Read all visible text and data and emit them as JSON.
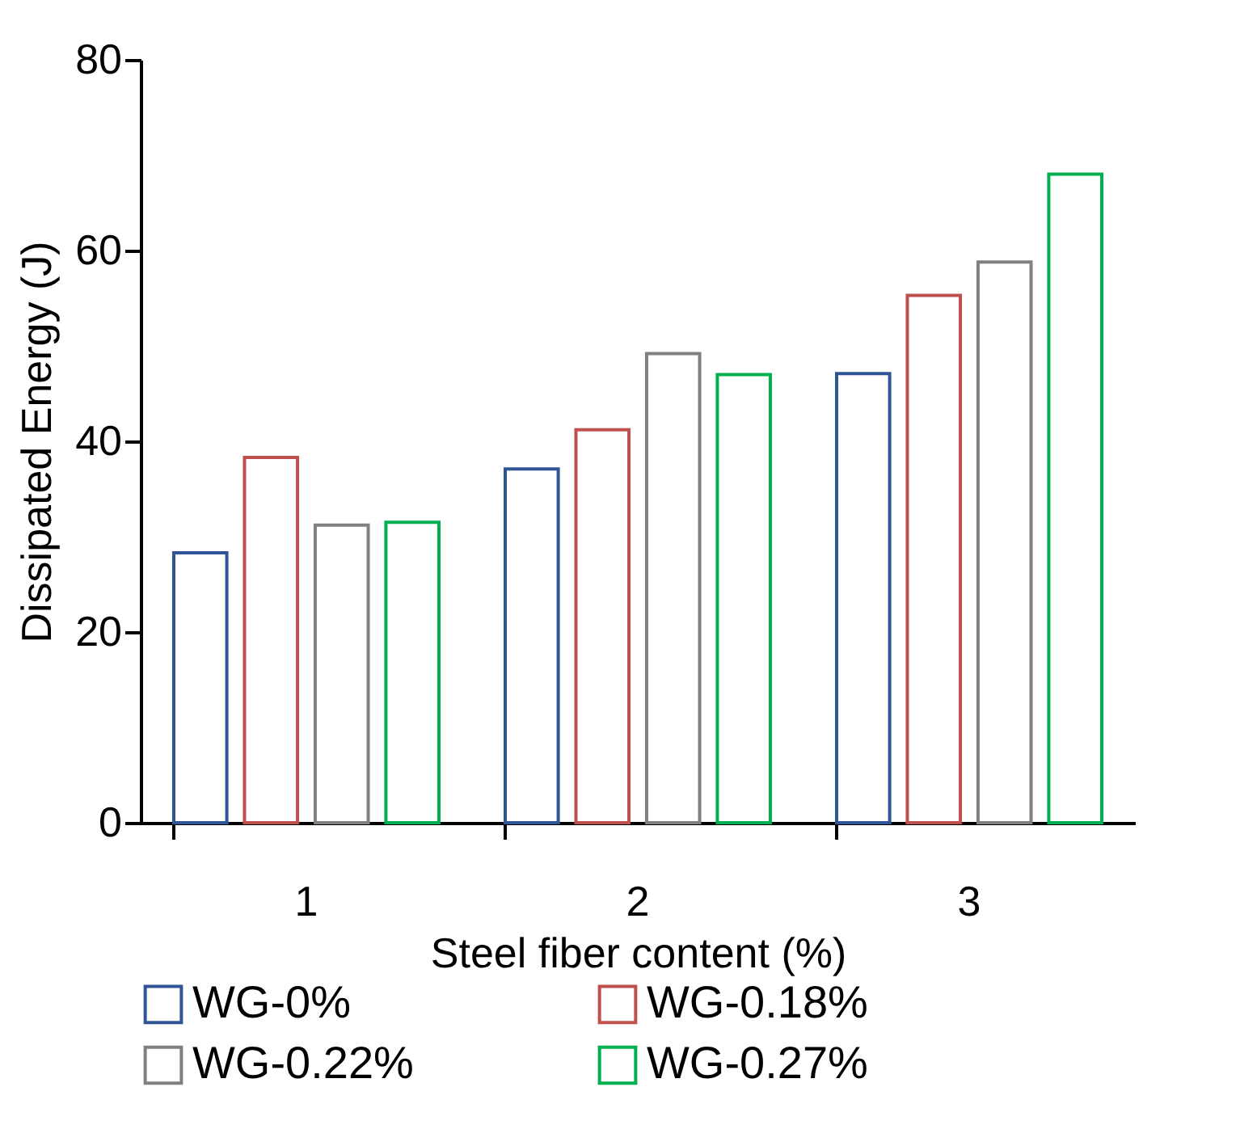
{
  "chart_data": {
    "type": "bar",
    "xlabel": "Steel fiber content (%)",
    "ylabel": "Dissipated Energy (J)",
    "categories": [
      "1",
      "2",
      "3"
    ],
    "series": [
      {
        "name": "WG-0%",
        "color": "#2f5597",
        "values": [
          28.3,
          37.1,
          47.1
        ]
      },
      {
        "name": "WG-0.18%",
        "color": "#c0504d",
        "values": [
          38.3,
          41.2,
          55.3
        ]
      },
      {
        "name": "WG-0.22%",
        "color": "#808080",
        "values": [
          31.2,
          49.2,
          58.8
        ]
      },
      {
        "name": "WG-0.27%",
        "color": "#00b050",
        "values": [
          31.5,
          47.0,
          68.0
        ]
      }
    ],
    "ylim": [
      0,
      80
    ],
    "yticks": [
      0,
      20,
      40,
      60,
      80
    ],
    "grid": false,
    "legend": "bottom"
  }
}
